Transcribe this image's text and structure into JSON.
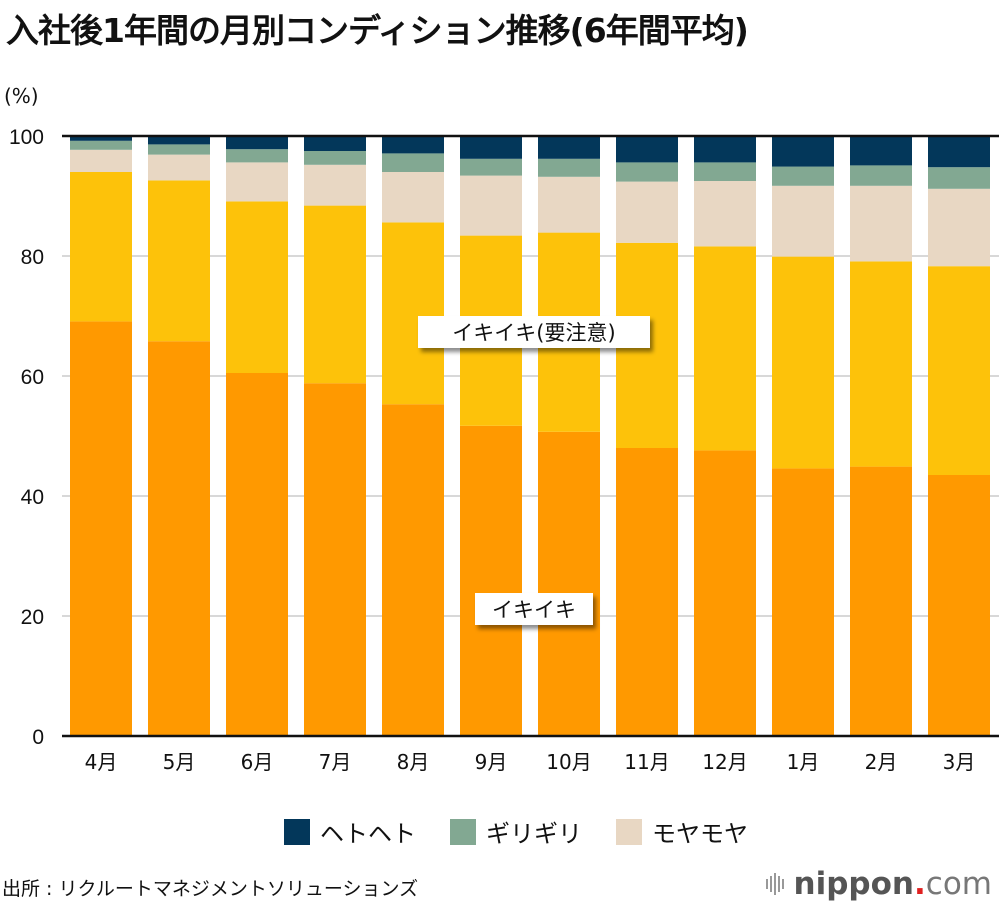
{
  "title": "入社後1年間の月別コンディション推移(6年間平均)",
  "unit_label": "(%)",
  "source": "出所 : リクルートマネジメントソリューションズ",
  "logo": {
    "name": "nippon",
    "dot": ".",
    "tld": "com"
  },
  "chart_data": {
    "type": "bar",
    "stacked": true,
    "title": "入社後1年間の月別コンディション推移(6年間平均)",
    "xlabel": "",
    "ylabel": "(%)",
    "ylim": [
      0,
      100
    ],
    "yticks": [
      0,
      20,
      40,
      60,
      80,
      100
    ],
    "grid": true,
    "categories": [
      "4月",
      "5月",
      "6月",
      "7月",
      "8月",
      "9月",
      "10月",
      "11月",
      "12月",
      "1月",
      "2月",
      "3月"
    ],
    "series": [
      {
        "name": "イキイキ",
        "color": "#FF9900",
        "values": [
          69.1,
          65.8,
          60.5,
          58.8,
          55.3,
          51.7,
          50.7,
          48.0,
          47.6,
          44.6,
          44.9,
          43.5
        ]
      },
      {
        "name": "イキイキ(要注意)",
        "color": "#FDC20A",
        "values": [
          24.9,
          26.8,
          28.6,
          29.6,
          30.3,
          31.7,
          33.2,
          34.2,
          34.0,
          35.3,
          34.2,
          34.8
        ]
      },
      {
        "name": "モヤモヤ",
        "color": "#E8D7C3",
        "values": [
          3.7,
          4.3,
          6.5,
          6.8,
          8.4,
          10.0,
          9.3,
          10.2,
          10.9,
          11.8,
          12.6,
          12.9
        ]
      },
      {
        "name": "ギリギリ",
        "color": "#82A892",
        "values": [
          1.5,
          1.7,
          2.2,
          2.3,
          3.1,
          2.8,
          3.0,
          3.2,
          3.1,
          3.2,
          3.4,
          3.6
        ]
      },
      {
        "name": "ヘトヘト",
        "color": "#03375A",
        "values": [
          0.8,
          1.4,
          2.2,
          2.5,
          2.9,
          3.8,
          3.8,
          4.4,
          4.4,
          5.1,
          4.9,
          5.2
        ]
      }
    ],
    "inline_labels": [
      {
        "text": "イキイキ(要注意)",
        "series": "イキイキ(要注意)"
      },
      {
        "text": "イキイキ",
        "series": "イキイキ"
      }
    ],
    "legend": {
      "position": "bottom",
      "items": [
        {
          "label": "ヘトヘト",
          "color": "#03375A"
        },
        {
          "label": "ギリギリ",
          "color": "#82A892"
        },
        {
          "label": "モヤモヤ",
          "color": "#E8D7C3"
        }
      ]
    }
  }
}
